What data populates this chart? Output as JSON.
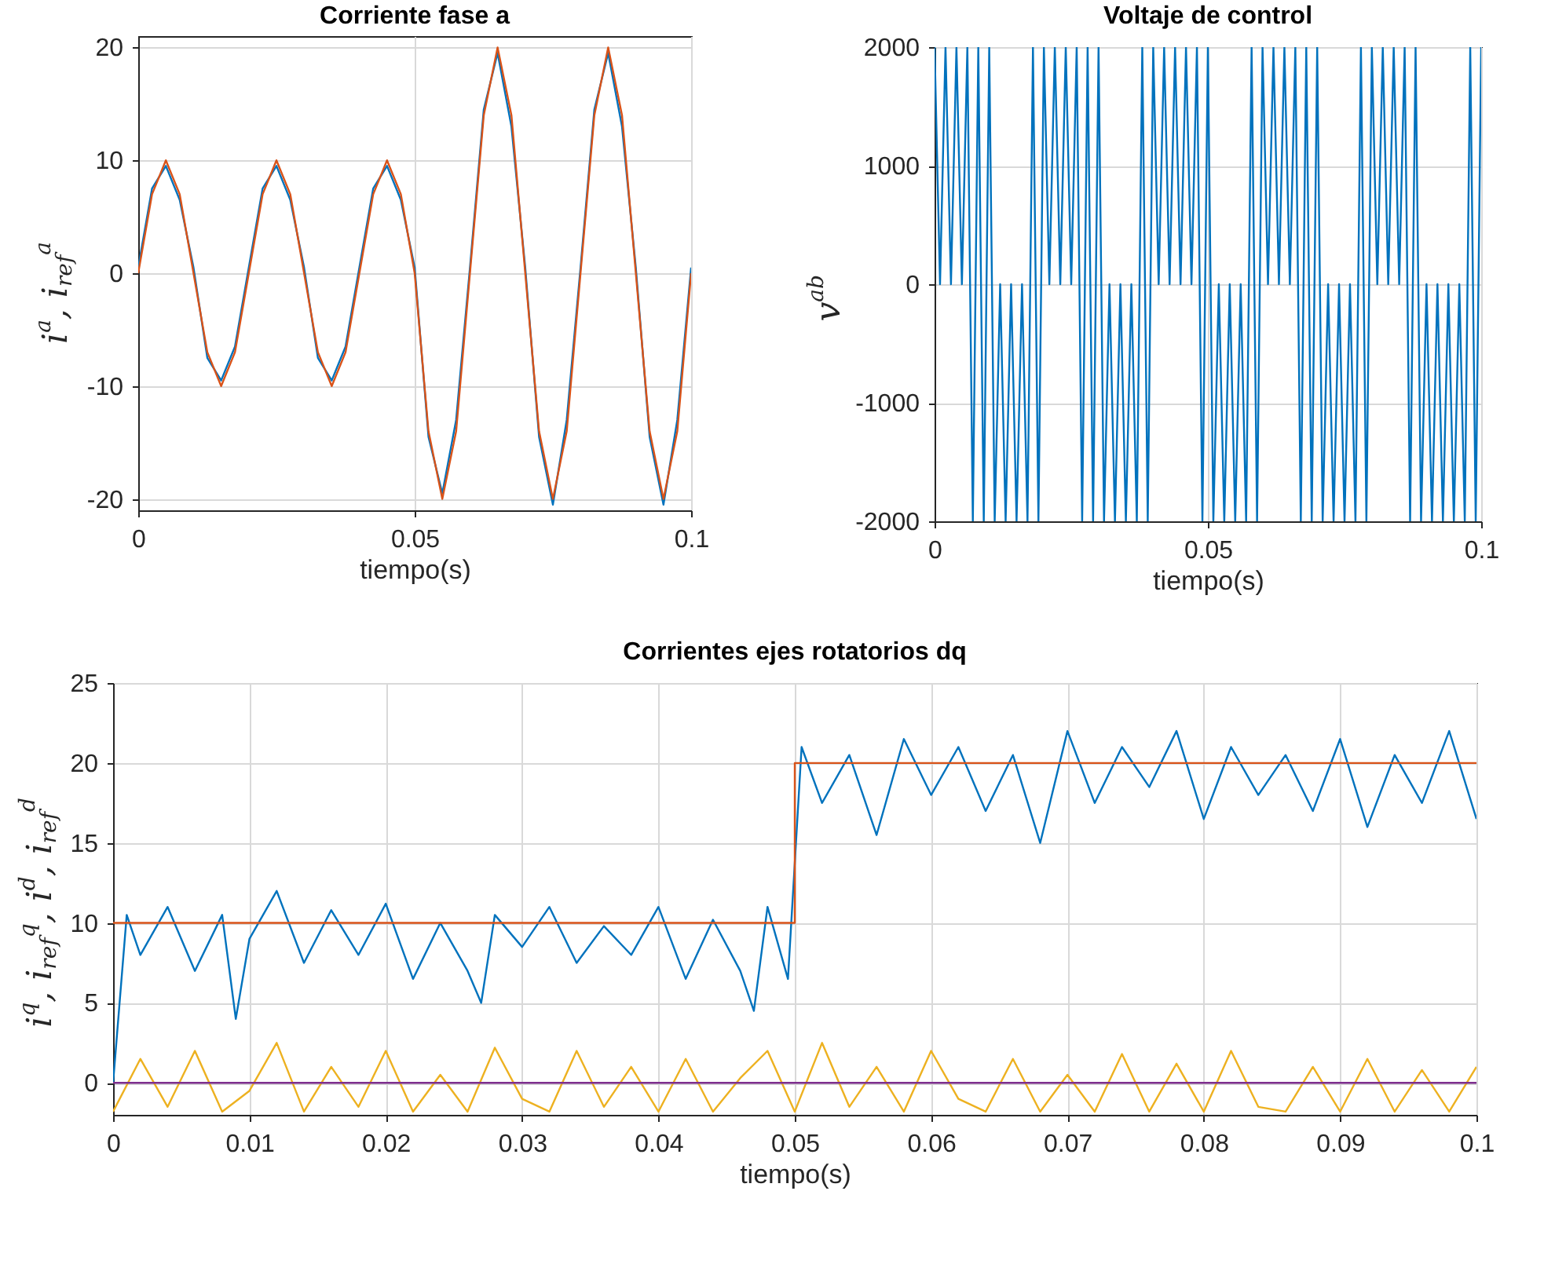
{
  "chart_data": [
    {
      "type": "line",
      "title": "Corriente fase a",
      "xlabel": "tiempo(s)",
      "ylabel": "i$^{a}$, i$_{ref}$$^{a}$",
      "xlim": [
        0,
        0.1
      ],
      "ylim": [
        -21,
        21
      ],
      "xticks": [
        0,
        0.05,
        0.1
      ],
      "yticks": [
        -20,
        -10,
        0,
        10,
        20
      ],
      "grid": true,
      "x": [
        0,
        0.0025,
        0.005,
        0.0075,
        0.01,
        0.0125,
        0.015,
        0.0175,
        0.02,
        0.0225,
        0.025,
        0.0275,
        0.03,
        0.0325,
        0.035,
        0.0375,
        0.04,
        0.0425,
        0.045,
        0.0475,
        0.05,
        0.0525,
        0.055,
        0.0575,
        0.06,
        0.0625,
        0.065,
        0.0675,
        0.07,
        0.0725,
        0.075,
        0.0775,
        0.08,
        0.0825,
        0.085,
        0.0875,
        0.09,
        0.0925,
        0.095,
        0.0975,
        0.1
      ],
      "series": [
        {
          "color": "#0072bd",
          "values": [
            0.5,
            7.5,
            9.5,
            6.5,
            0.5,
            -7.5,
            -9.5,
            -6.5,
            0.5,
            7.5,
            9.5,
            6.5,
            0.5,
            -7.5,
            -9.5,
            -6.5,
            0.5,
            7.5,
            9.5,
            6.5,
            0.5,
            -14.5,
            -19.5,
            -13,
            0.5,
            14.5,
            19.5,
            13,
            0.5,
            -14.5,
            -20.5,
            -13,
            0.5,
            14.5,
            19.5,
            13,
            0.5,
            -14.5,
            -20.5,
            -13,
            0.5
          ]
        },
        {
          "color": "#d95319",
          "values": [
            0,
            7,
            10,
            7,
            0,
            -7,
            -10,
            -7,
            0,
            7,
            10,
            7,
            0,
            -7,
            -10,
            -7,
            0,
            7,
            10,
            7,
            0,
            -14,
            -20,
            -14,
            0,
            14,
            20,
            14,
            0,
            -14,
            -20,
            -14,
            0,
            14,
            20,
            14,
            0,
            -14,
            -20,
            -14,
            0
          ]
        }
      ]
    },
    {
      "type": "line",
      "title": "Voltaje de control",
      "xlabel": "tiempo(s)",
      "ylabel": "v$^{ab}$",
      "xlim": [
        0,
        0.1
      ],
      "ylim": [
        -2000,
        2000
      ],
      "xticks": [
        0,
        0.05,
        0.1
      ],
      "yticks": [
        -2000,
        -1000,
        0,
        1000,
        2000
      ],
      "grid": true,
      "x": [
        0,
        0.001,
        0.002,
        0.003,
        0.004,
        0.005,
        0.006,
        0.007,
        0.008,
        0.009,
        0.01,
        0.011,
        0.012,
        0.013,
        0.014,
        0.015,
        0.016,
        0.017,
        0.018,
        0.019,
        0.02,
        0.021,
        0.022,
        0.023,
        0.024,
        0.025,
        0.026,
        0.027,
        0.028,
        0.029,
        0.03,
        0.031,
        0.032,
        0.033,
        0.034,
        0.035,
        0.036,
        0.037,
        0.038,
        0.039,
        0.04,
        0.041,
        0.042,
        0.043,
        0.044,
        0.045,
        0.046,
        0.047,
        0.048,
        0.049,
        0.05,
        0.051,
        0.052,
        0.053,
        0.054,
        0.055,
        0.056,
        0.057,
        0.058,
        0.059,
        0.06,
        0.061,
        0.062,
        0.063,
        0.064,
        0.065,
        0.066,
        0.067,
        0.068,
        0.069,
        0.07,
        0.071,
        0.072,
        0.073,
        0.074,
        0.075,
        0.076,
        0.077,
        0.078,
        0.079,
        0.08,
        0.081,
        0.082,
        0.083,
        0.084,
        0.085,
        0.086,
        0.087,
        0.088,
        0.089,
        0.09,
        0.091,
        0.092,
        0.093,
        0.094,
        0.095,
        0.096,
        0.097,
        0.098,
        0.099,
        0.1
      ],
      "series": [
        {
          "color": "#0072bd",
          "values": [
            2000,
            0,
            2000,
            0,
            2000,
            0,
            2000,
            -2000,
            2000,
            -2000,
            2000,
            -2000,
            0,
            -2000,
            0,
            -2000,
            0,
            -2000,
            2000,
            -2000,
            2000,
            0,
            2000,
            0,
            2000,
            0,
            2000,
            -2000,
            2000,
            -2000,
            2000,
            -2000,
            0,
            -2000,
            0,
            -2000,
            0,
            -2000,
            2000,
            -2000,
            2000,
            0,
            2000,
            0,
            2000,
            0,
            2000,
            0,
            2000,
            -2000,
            2000,
            -2000,
            0,
            -2000,
            0,
            -2000,
            0,
            -2000,
            2000,
            -2000,
            2000,
            0,
            2000,
            0,
            2000,
            0,
            2000,
            -2000,
            2000,
            -2000,
            2000,
            -2000,
            0,
            -2000,
            0,
            -2000,
            0,
            -2000,
            2000,
            -2000,
            2000,
            0,
            2000,
            0,
            2000,
            0,
            2000,
            -2000,
            2000,
            -2000,
            0,
            -2000,
            0,
            -2000,
            0,
            -2000,
            0,
            -2000,
            2000,
            -2000,
            2000
          ]
        }
      ]
    },
    {
      "type": "line",
      "title": "Corrientes ejes rotatorios dq",
      "xlabel": "tiempo(s)",
      "ylabel": "i$^{q}$, i$_{ref}$$^{q}$, i$^{d}$, i$_{ref}$$^{d}$",
      "xlim": [
        0,
        0.1
      ],
      "ylim": [
        -2,
        25
      ],
      "xticks": [
        0,
        0.01,
        0.02,
        0.03,
        0.04,
        0.05,
        0.06,
        0.07,
        0.08,
        0.09,
        0.1
      ],
      "yticks": [
        0,
        5,
        10,
        15,
        20,
        25
      ],
      "grid": true,
      "series": [
        {
          "color": "#0072bd",
          "x": [
            0,
            0.001,
            0.002,
            0.004,
            0.006,
            0.008,
            0.009,
            0.01,
            0.012,
            0.014,
            0.016,
            0.018,
            0.02,
            0.022,
            0.024,
            0.026,
            0.027,
            0.028,
            0.03,
            0.032,
            0.034,
            0.036,
            0.038,
            0.04,
            0.042,
            0.044,
            0.046,
            0.047,
            0.048,
            0.0495,
            0.0505,
            0.052,
            0.054,
            0.056,
            0.058,
            0.06,
            0.062,
            0.064,
            0.066,
            0.068,
            0.07,
            0.072,
            0.074,
            0.076,
            0.078,
            0.08,
            0.082,
            0.084,
            0.086,
            0.088,
            0.09,
            0.092,
            0.094,
            0.096,
            0.098,
            0.1
          ],
          "values": [
            0,
            10.5,
            8,
            11,
            7,
            10.5,
            4,
            9,
            12,
            7.5,
            10.8,
            8,
            11.2,
            6.5,
            10,
            7,
            5,
            10.5,
            8.5,
            11,
            7.5,
            9.8,
            8,
            11,
            6.5,
            10.2,
            7,
            4.5,
            11,
            6.5,
            21,
            17.5,
            20.5,
            15.5,
            21.5,
            18,
            21,
            17,
            20.5,
            15,
            22,
            17.5,
            21,
            18.5,
            22,
            16.5,
            21,
            18,
            20.5,
            17,
            21.5,
            16,
            20.5,
            17.5,
            22,
            16.5
          ]
        },
        {
          "color": "#d95319",
          "x": [
            0,
            0.05,
            0.05,
            0.1
          ],
          "values": [
            10,
            10,
            20,
            20
          ]
        },
        {
          "color": "#edb120",
          "x": [
            0,
            0.002,
            0.004,
            0.006,
            0.008,
            0.01,
            0.012,
            0.014,
            0.016,
            0.018,
            0.02,
            0.022,
            0.024,
            0.026,
            0.028,
            0.03,
            0.032,
            0.034,
            0.036,
            0.038,
            0.04,
            0.042,
            0.044,
            0.046,
            0.048,
            0.05,
            0.052,
            0.054,
            0.056,
            0.058,
            0.06,
            0.062,
            0.064,
            0.066,
            0.068,
            0.07,
            0.072,
            0.074,
            0.076,
            0.078,
            0.08,
            0.082,
            0.084,
            0.086,
            0.088,
            0.09,
            0.092,
            0.094,
            0.096,
            0.098,
            0.1
          ],
          "values": [
            -1.8,
            1.5,
            -1.5,
            2,
            -1.8,
            -0.5,
            2.5,
            -1.8,
            1,
            -1.5,
            2,
            -1.8,
            0.5,
            -1.8,
            2.2,
            -1,
            -1.8,
            2,
            -1.5,
            1,
            -1.8,
            1.5,
            -1.8,
            0.3,
            2,
            -1.8,
            2.5,
            -1.5,
            1,
            -1.8,
            2,
            -1,
            -1.8,
            1.5,
            -1.8,
            0.5,
            -1.8,
            1.8,
            -1.8,
            1.2,
            -1.8,
            2,
            -1.5,
            -1.8,
            1,
            -1.8,
            1.5,
            -1.8,
            0.8,
            -1.8,
            1
          ]
        },
        {
          "color": "#7e2f8e",
          "x": [
            0,
            0.1
          ],
          "values": [
            0,
            0
          ]
        }
      ]
    }
  ]
}
